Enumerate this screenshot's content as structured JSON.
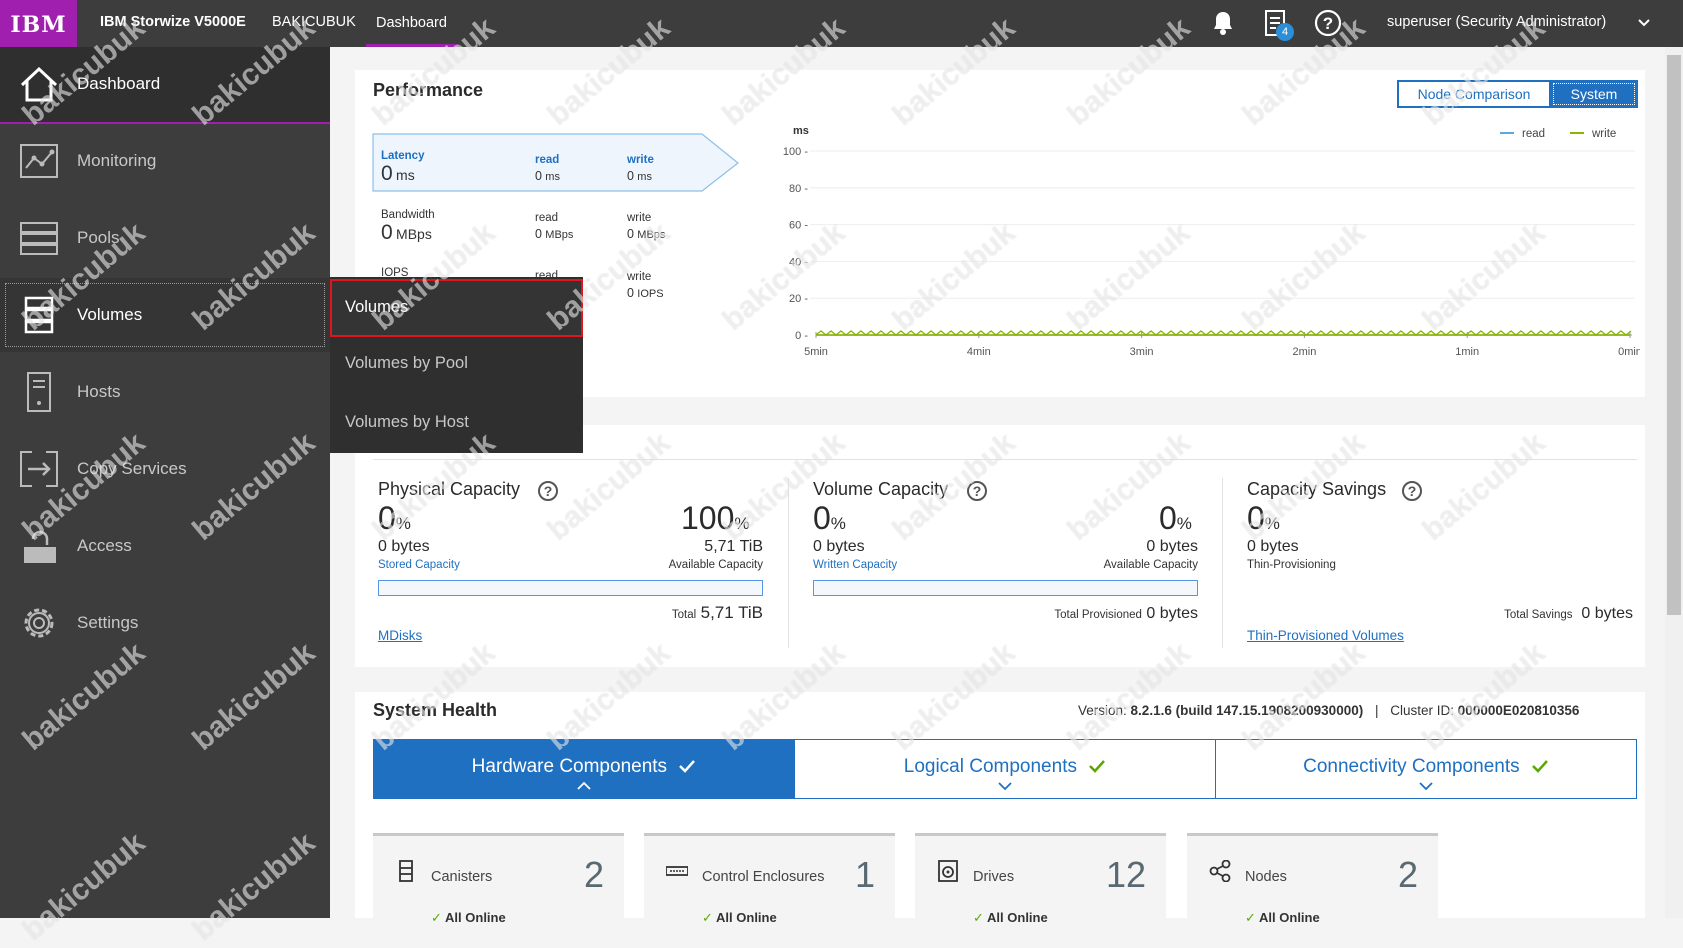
{
  "topbar": {
    "logo": "IBM",
    "product": "IBM Storwize V5000E",
    "system_name": "BAKICUBUK",
    "nav_tab": "Dashboard",
    "tasks_badge": "4",
    "user": "superuser (Security Administrator)"
  },
  "sidebar": {
    "items": [
      {
        "label": "Dashboard",
        "icon": "home-icon"
      },
      {
        "label": "Monitoring",
        "icon": "monitoring-icon"
      },
      {
        "label": "Pools",
        "icon": "pools-icon"
      },
      {
        "label": "Volumes",
        "icon": "volumes-icon"
      },
      {
        "label": "Hosts",
        "icon": "hosts-icon"
      },
      {
        "label": "Copy Services",
        "icon": "copy-services-icon"
      },
      {
        "label": "Access",
        "icon": "access-icon"
      },
      {
        "label": "Settings",
        "icon": "gear-icon"
      }
    ]
  },
  "flyout": {
    "items": [
      "Volumes",
      "Volumes by Pool",
      "Volumes by Host"
    ]
  },
  "performance": {
    "title": "Performance",
    "toggle": {
      "node": "Node Comparison",
      "system": "System"
    },
    "latency": {
      "label": "Latency",
      "value": "0",
      "unit": "ms",
      "read_label": "read",
      "read": "0",
      "read_unit": "ms",
      "write_label": "write",
      "write": "0",
      "write_unit": "ms"
    },
    "bandwidth": {
      "label": "Bandwidth",
      "value": "0",
      "unit": "MBps",
      "read_label": "read",
      "read": "0",
      "read_unit": "MBps",
      "write_label": "write",
      "write": "0",
      "write_unit": "MBps"
    },
    "iops": {
      "label": "IOPS",
      "read_label": "read",
      "write_label": "write",
      "write": "0",
      "write_unit": "IOPS"
    },
    "chart": {
      "unit_label": "ms",
      "y_ticks": [
        "100 -",
        "80 -",
        "60 -",
        "40 -",
        "20 -",
        "0 -"
      ],
      "x_ticks": [
        "5min",
        "4min",
        "3min",
        "2min",
        "1min",
        "0min"
      ],
      "legend": [
        "read",
        "write"
      ]
    }
  },
  "chart_data": {
    "type": "line",
    "x": [
      "5min",
      "4min",
      "3min",
      "2min",
      "1min",
      "0min"
    ],
    "series": [
      {
        "name": "read",
        "values": [
          0,
          0,
          0,
          0,
          0,
          0
        ]
      },
      {
        "name": "write",
        "values": [
          0,
          0,
          0,
          0,
          0,
          0
        ]
      }
    ],
    "ylabel": "ms",
    "ylim": [
      0,
      100
    ],
    "colors": {
      "read": "#5aa9d8",
      "write": "#8cb400"
    }
  },
  "capacity": {
    "physical": {
      "title": "Physical Capacity",
      "pct_left": "0",
      "pct_right": "100",
      "pct_sym": "%",
      "bytes_left": "0 bytes",
      "stored_label": "Stored Capacity",
      "avail_value": "5,71 TiB",
      "avail_label": "Available Capacity",
      "total_label": "Total",
      "total_value": "5,71 TiB",
      "link": "MDisks",
      "fill": 0
    },
    "volume": {
      "title": "Volume Capacity",
      "pct_left": "0",
      "pct_right": "0",
      "pct_sym": "%",
      "bytes_left": "0 bytes",
      "written_label": "Written Capacity",
      "avail_value": "0 bytes",
      "avail_label": "Available Capacity",
      "total_label": "Total Provisioned",
      "total_value": "0 bytes",
      "fill": 0
    },
    "savings": {
      "title": "Capacity Savings",
      "pct": "0",
      "pct_sym": "%",
      "bytes": "0 bytes",
      "sub_label": "Thin-Provisioning",
      "total_label": "Total Savings",
      "total_value": "0 bytes",
      "link": "Thin-Provisioned Volumes"
    }
  },
  "health": {
    "title": "System Health",
    "version_label": "Version:",
    "version": "8.2.1.6 (build 147.15.1908200930000)",
    "separator": "|",
    "cluster_label": "Cluster ID:",
    "cluster_id": "000000E020810356",
    "tabs": [
      "Hardware Components",
      "Logical Components",
      "Connectivity Components"
    ],
    "cards": [
      {
        "name": "Canisters",
        "count": "2",
        "status": "All Online",
        "icon": "canister-icon"
      },
      {
        "name": "Control Enclosures",
        "count": "1",
        "status": "All Online",
        "icon": "enclosure-icon"
      },
      {
        "name": "Drives",
        "count": "12",
        "status": "All Online",
        "icon": "drive-icon"
      },
      {
        "name": "Nodes",
        "count": "2",
        "status": "All Online",
        "icon": "nodes-icon"
      }
    ]
  },
  "watermark": "bakicubuk"
}
